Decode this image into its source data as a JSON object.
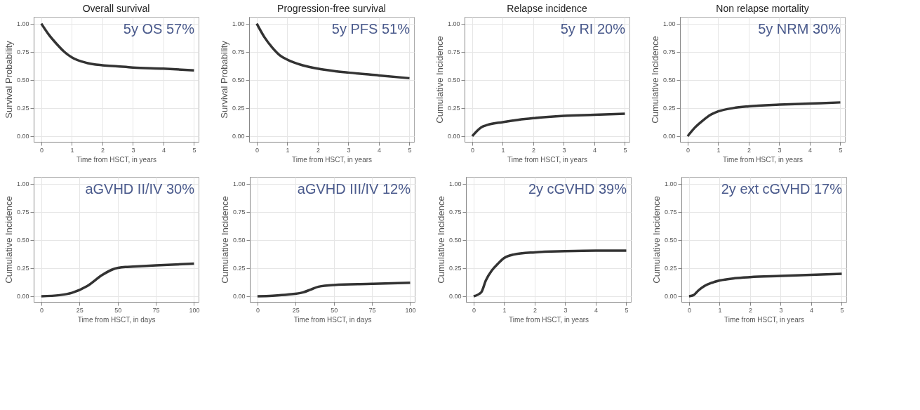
{
  "chart_data": [
    {
      "type": "line",
      "title": "Overall survival",
      "xlabel": "Time from HSCT, in years",
      "ylabel": "Survival Probability",
      "annotations": [
        "5y OS 57%"
      ],
      "grid": true,
      "xlim": [
        -0.25,
        5.15
      ],
      "ylim": [
        -0.05,
        1.06
      ],
      "xticks": [
        0,
        1,
        2,
        3,
        4,
        5
      ],
      "yticks": [
        {
          "value": 0,
          "label": "0.00"
        },
        {
          "value": 0.25,
          "label": "0.25"
        },
        {
          "value": 0.5,
          "label": "0.50"
        },
        {
          "value": 0.75,
          "label": "0.75"
        },
        {
          "value": 1,
          "label": "1.00"
        }
      ],
      "x": [
        0,
        0.25,
        0.5,
        0.75,
        1,
        1.5,
        2,
        2.5,
        3,
        4,
        5
      ],
      "series": [
        {
          "color": "#333333",
          "values": [
            1.0,
            0.9,
            0.82,
            0.75,
            0.7,
            0.65,
            0.63,
            0.62,
            0.61,
            0.6,
            0.585
          ]
        }
      ]
    },
    {
      "type": "line",
      "title": "Progression-free survival",
      "xlabel": "Time from HSCT, in years",
      "ylabel": "Survival Probability",
      "annotations": [
        "5y PFS 51%"
      ],
      "grid": true,
      "xlim": [
        -0.25,
        5.15
      ],
      "ylim": [
        -0.05,
        1.06
      ],
      "xticks": [
        0,
        1,
        2,
        3,
        4,
        5
      ],
      "yticks": [
        {
          "value": 0,
          "label": "0.00"
        },
        {
          "value": 0.25,
          "label": "0.25"
        },
        {
          "value": 0.5,
          "label": "0.50"
        },
        {
          "value": 0.75,
          "label": "0.75"
        },
        {
          "value": 1,
          "label": "1.00"
        }
      ],
      "x": [
        0,
        0.25,
        0.5,
        0.75,
        1,
        1.5,
        2,
        2.5,
        3,
        4,
        5
      ],
      "series": [
        {
          "color": "#333333",
          "values": [
            1.0,
            0.88,
            0.79,
            0.72,
            0.68,
            0.63,
            0.6,
            0.58,
            0.565,
            0.54,
            0.515
          ]
        }
      ]
    },
    {
      "type": "line",
      "title": "Relapse incidence",
      "xlabel": "Time from HSCT, in years",
      "ylabel": "Cumulative Incidence",
      "annotations": [
        "5y RI 20%"
      ],
      "grid": true,
      "xlim": [
        -0.25,
        5.15
      ],
      "ylim": [
        -0.05,
        1.06
      ],
      "xticks": [
        0,
        1,
        2,
        3,
        4,
        5
      ],
      "yticks": [
        {
          "value": 0,
          "label": "0.00"
        },
        {
          "value": 0.25,
          "label": "0.25"
        },
        {
          "value": 0.5,
          "label": "0.50"
        },
        {
          "value": 0.75,
          "label": "0.75"
        },
        {
          "value": 1,
          "label": "1.00"
        }
      ],
      "x": [
        0,
        0.3,
        0.5,
        1,
        1.5,
        2,
        3,
        4,
        5
      ],
      "series": [
        {
          "color": "#333333",
          "values": [
            0.0,
            0.08,
            0.1,
            0.125,
            0.145,
            0.16,
            0.18,
            0.19,
            0.2
          ]
        }
      ]
    },
    {
      "type": "line",
      "title": "Non relapse mortality",
      "xlabel": "Time from HSCT, in years",
      "ylabel": "Cumulative Incidence",
      "annotations": [
        "5y NRM 30%"
      ],
      "grid": true,
      "xlim": [
        -0.25,
        5.15
      ],
      "ylim": [
        -0.05,
        1.06
      ],
      "xticks": [
        0,
        1,
        2,
        3,
        4,
        5
      ],
      "yticks": [
        {
          "value": 0,
          "label": "0.00"
        },
        {
          "value": 0.25,
          "label": "0.25"
        },
        {
          "value": 0.5,
          "label": "0.50"
        },
        {
          "value": 0.75,
          "label": "0.75"
        },
        {
          "value": 1,
          "label": "1.00"
        }
      ],
      "x": [
        0,
        0.25,
        0.5,
        0.75,
        1,
        1.5,
        2,
        3,
        4,
        5
      ],
      "series": [
        {
          "color": "#333333",
          "values": [
            0.0,
            0.08,
            0.14,
            0.19,
            0.22,
            0.25,
            0.265,
            0.28,
            0.29,
            0.3
          ]
        }
      ]
    },
    {
      "type": "line",
      "xlabel": "Time from HSCT, in days",
      "ylabel": "Cumulative Incidence",
      "annotations": [
        "aGVHD II/IV 30%"
      ],
      "grid": true,
      "xlim": [
        -5,
        103
      ],
      "ylim": [
        -0.05,
        1.06
      ],
      "xticks": [
        0,
        25,
        50,
        75,
        100
      ],
      "yticks": [
        {
          "value": 0,
          "label": "0.00"
        },
        {
          "value": 0.25,
          "label": "0.25"
        },
        {
          "value": 0.5,
          "label": "0.50"
        },
        {
          "value": 0.75,
          "label": "0.75"
        },
        {
          "value": 1,
          "label": "1.00"
        }
      ],
      "x": [
        0,
        12,
        20,
        30,
        40,
        47,
        55,
        60,
        75,
        100
      ],
      "series": [
        {
          "color": "#333333",
          "values": [
            0.0,
            0.01,
            0.03,
            0.09,
            0.19,
            0.24,
            0.26,
            0.263,
            0.274,
            0.29
          ]
        }
      ]
    },
    {
      "type": "line",
      "xlabel": "Time from HSCT, in days",
      "ylabel": "Cumulative Incidence",
      "annotations": [
        "aGVHD III/IV 12%"
      ],
      "grid": true,
      "xlim": [
        -5,
        103
      ],
      "ylim": [
        -0.05,
        1.06
      ],
      "xticks": [
        0,
        25,
        50,
        75,
        100
      ],
      "yticks": [
        {
          "value": 0,
          "label": "0.00"
        },
        {
          "value": 0.25,
          "label": "0.25"
        },
        {
          "value": 0.5,
          "label": "0.50"
        },
        {
          "value": 0.75,
          "label": "0.75"
        },
        {
          "value": 1,
          "label": "1.00"
        }
      ],
      "x": [
        0,
        10,
        20,
        30,
        35,
        40,
        50,
        75,
        100
      ],
      "series": [
        {
          "color": "#333333",
          "values": [
            0.0,
            0.005,
            0.015,
            0.035,
            0.06,
            0.085,
            0.1,
            0.11,
            0.12
          ]
        }
      ]
    },
    {
      "type": "line",
      "xlabel": "Time from HSCT, in years",
      "ylabel": "Cumulative Incidence",
      "annotations": [
        "2y cGVHD 39%"
      ],
      "grid": true,
      "xlim": [
        -0.25,
        5.15
      ],
      "ylim": [
        -0.05,
        1.06
      ],
      "xticks": [
        0,
        1,
        2,
        3,
        4,
        5
      ],
      "yticks": [
        {
          "value": 0,
          "label": "0.00"
        },
        {
          "value": 0.25,
          "label": "0.25"
        },
        {
          "value": 0.5,
          "label": "0.50"
        },
        {
          "value": 0.75,
          "label": "0.75"
        },
        {
          "value": 1,
          "label": "1.00"
        }
      ],
      "x": [
        0,
        0.25,
        0.4,
        0.6,
        0.8,
        1,
        1.3,
        2,
        3,
        4,
        5
      ],
      "series": [
        {
          "color": "#333333",
          "values": [
            0.0,
            0.035,
            0.14,
            0.23,
            0.29,
            0.34,
            0.37,
            0.39,
            0.4,
            0.405,
            0.405
          ]
        }
      ]
    },
    {
      "type": "line",
      "xlabel": "Time from HSCT, in years",
      "ylabel": "Cumulative Incidence",
      "annotations": [
        "2y ext cGVHD 17%"
      ],
      "grid": true,
      "xlim": [
        -0.25,
        5.15
      ],
      "ylim": [
        -0.05,
        1.06
      ],
      "xticks": [
        0,
        1,
        2,
        3,
        4,
        5
      ],
      "yticks": [
        {
          "value": 0,
          "label": "0.00"
        },
        {
          "value": 0.25,
          "label": "0.25"
        },
        {
          "value": 0.5,
          "label": "0.50"
        },
        {
          "value": 0.75,
          "label": "0.75"
        },
        {
          "value": 1,
          "label": "1.00"
        }
      ],
      "x": [
        0,
        0.15,
        0.3,
        0.5,
        0.75,
        1,
        1.5,
        2,
        3,
        4,
        5
      ],
      "series": [
        {
          "color": "#333333",
          "values": [
            0.0,
            0.01,
            0.05,
            0.09,
            0.12,
            0.14,
            0.16,
            0.17,
            0.18,
            0.19,
            0.2
          ]
        }
      ]
    }
  ]
}
